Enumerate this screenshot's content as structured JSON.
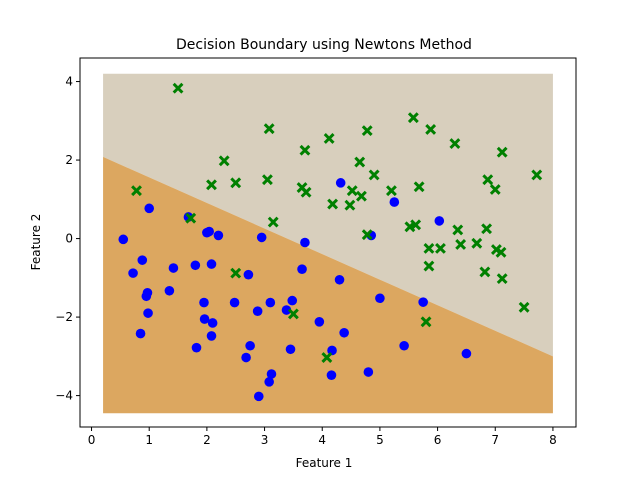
{
  "chart_data": {
    "type": "scatter",
    "title": "Decision Boundary using Newtons Method",
    "xlabel": "Feature 1",
    "ylabel": "Feature 2",
    "xlim": [
      -0.2,
      8.4
    ],
    "ylim": [
      -4.8,
      4.6
    ],
    "xticks": [
      0,
      1,
      2,
      3,
      4,
      5,
      6,
      7,
      8
    ],
    "yticks": [
      -4,
      -2,
      0,
      2,
      4
    ],
    "xtick_labels": [
      "0",
      "1",
      "2",
      "3",
      "4",
      "5",
      "6",
      "7",
      "8"
    ],
    "ytick_labels": [
      "−4",
      "−2",
      "0",
      "2",
      "4"
    ],
    "grid": false,
    "regions": {
      "x_range": [
        0.2,
        8.0
      ],
      "y_range": [
        -4.45,
        4.2
      ],
      "boundary": [
        [
          0.2,
          2.08
        ],
        [
          8.0,
          -3.0
        ]
      ],
      "upper_color": "#d8cfbd",
      "lower_color": "#dca760"
    },
    "series": [
      {
        "marker": "circle",
        "color": "#0000ff",
        "points": [
          [
            0.55,
            -0.02
          ],
          [
            0.72,
            -0.88
          ],
          [
            0.88,
            -0.55
          ],
          [
            0.85,
            -2.42
          ],
          [
            0.95,
            -1.47
          ],
          [
            0.97,
            -1.38
          ],
          [
            0.98,
            -1.9
          ],
          [
            1.0,
            0.77
          ],
          [
            1.35,
            -1.33
          ],
          [
            1.42,
            -0.75
          ],
          [
            1.68,
            0.55
          ],
          [
            1.8,
            -0.68
          ],
          [
            1.82,
            -2.78
          ],
          [
            1.95,
            -1.63
          ],
          [
            1.96,
            -2.05
          ],
          [
            2.0,
            0.15
          ],
          [
            2.04,
            0.18
          ],
          [
            2.08,
            -0.65
          ],
          [
            2.08,
            -2.48
          ],
          [
            2.1,
            -2.15
          ],
          [
            2.2,
            0.08
          ],
          [
            2.48,
            -1.63
          ],
          [
            2.68,
            -3.03
          ],
          [
            2.72,
            -0.92
          ],
          [
            2.75,
            -2.73
          ],
          [
            2.88,
            -1.85
          ],
          [
            2.9,
            -4.02
          ],
          [
            2.95,
            0.03
          ],
          [
            3.08,
            -3.65
          ],
          [
            3.1,
            -1.63
          ],
          [
            3.12,
            -3.45
          ],
          [
            3.38,
            -1.82
          ],
          [
            3.45,
            -2.82
          ],
          [
            3.48,
            -1.58
          ],
          [
            3.65,
            -0.78
          ],
          [
            3.7,
            -0.1
          ],
          [
            3.95,
            -2.12
          ],
          [
            4.16,
            -3.48
          ],
          [
            4.17,
            -2.85
          ],
          [
            4.3,
            -1.05
          ],
          [
            4.32,
            1.42
          ],
          [
            4.38,
            -2.4
          ],
          [
            4.8,
            -3.4
          ],
          [
            4.85,
            0.08
          ],
          [
            5.0,
            -1.52
          ],
          [
            5.25,
            0.93
          ],
          [
            5.42,
            -2.73
          ],
          [
            5.75,
            -1.62
          ],
          [
            6.03,
            0.45
          ],
          [
            6.5,
            -2.93
          ]
        ]
      },
      {
        "marker": "x",
        "color": "#008000",
        "points": [
          [
            1.5,
            3.83
          ],
          [
            3.08,
            2.8
          ],
          [
            4.12,
            2.55
          ],
          [
            4.78,
            2.75
          ],
          [
            5.58,
            3.08
          ],
          [
            5.88,
            2.78
          ],
          [
            3.7,
            2.25
          ],
          [
            2.3,
            1.98
          ],
          [
            6.3,
            2.42
          ],
          [
            7.12,
            2.2
          ],
          [
            0.78,
            1.22
          ],
          [
            2.08,
            1.37
          ],
          [
            2.5,
            1.42
          ],
          [
            3.05,
            1.5
          ],
          [
            3.65,
            1.3
          ],
          [
            3.72,
            1.18
          ],
          [
            4.65,
            1.95
          ],
          [
            4.9,
            1.62
          ],
          [
            4.52,
            1.22
          ],
          [
            4.18,
            0.88
          ],
          [
            4.48,
            0.85
          ],
          [
            4.68,
            1.08
          ],
          [
            5.2,
            1.22
          ],
          [
            5.68,
            1.32
          ],
          [
            6.87,
            1.5
          ],
          [
            7.0,
            1.25
          ],
          [
            7.72,
            1.62
          ],
          [
            1.72,
            0.52
          ],
          [
            3.15,
            0.42
          ],
          [
            5.52,
            0.3
          ],
          [
            5.62,
            0.35
          ],
          [
            6.35,
            0.22
          ],
          [
            6.85,
            0.25
          ],
          [
            4.78,
            0.1
          ],
          [
            5.85,
            -0.25
          ],
          [
            6.05,
            -0.25
          ],
          [
            6.4,
            -0.15
          ],
          [
            6.68,
            -0.12
          ],
          [
            7.02,
            -0.28
          ],
          [
            7.1,
            -0.35
          ],
          [
            5.85,
            -0.7
          ],
          [
            6.82,
            -0.85
          ],
          [
            7.12,
            -1.02
          ],
          [
            2.5,
            -0.88
          ],
          [
            3.5,
            -1.92
          ],
          [
            5.8,
            -2.12
          ],
          [
            7.5,
            -1.75
          ],
          [
            4.08,
            -3.03
          ]
        ]
      }
    ]
  }
}
